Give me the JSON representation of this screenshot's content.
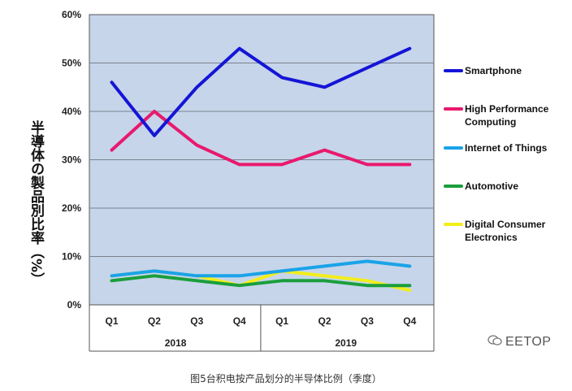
{
  "chart_data": {
    "type": "line",
    "title": "",
    "ylabel": "半導体の製品別比率（%）",
    "xlabel": "",
    "ylim": [
      0,
      60
    ],
    "yticks": [
      "0%",
      "10%",
      "20%",
      "30%",
      "40%",
      "50%",
      "60%"
    ],
    "categories": [
      "Q1",
      "Q2",
      "Q3",
      "Q4",
      "Q1",
      "Q2",
      "Q3",
      "Q4"
    ],
    "groups": [
      {
        "label": "2018",
        "span": [
          0,
          3
        ]
      },
      {
        "label": "2019",
        "span": [
          4,
          7
        ]
      }
    ],
    "grid": true,
    "legend_position": "right",
    "series": [
      {
        "name": "Smartphone",
        "color": "#1515d6",
        "values": [
          46,
          35,
          45,
          53,
          47,
          45,
          49,
          53
        ]
      },
      {
        "name": "High Performance Computing",
        "color": "#e8196e",
        "values": [
          32,
          40,
          33,
          29,
          29,
          32,
          29,
          29
        ]
      },
      {
        "name": "Internet of Things",
        "color": "#1aa3e8",
        "values": [
          6,
          7,
          6,
          6,
          7,
          8,
          9,
          8
        ]
      },
      {
        "name": "Automotive",
        "color": "#1a9e3c",
        "values": [
          5,
          6,
          5,
          4,
          5,
          5,
          4,
          4
        ]
      },
      {
        "name": "Digital Consumer Electronics",
        "color": "#f2ee1a",
        "values": [
          6,
          7,
          6,
          4,
          7,
          6,
          5,
          3
        ]
      }
    ],
    "legend_labels": [
      [
        "Smartphone"
      ],
      [
        "High Performance",
        "Computing"
      ],
      [
        "Internet of Things"
      ],
      [
        "Automotive"
      ],
      [
        "Digital Consumer",
        "Electronics"
      ]
    ],
    "plot_background": "#c6d5ea"
  },
  "caption": "图5台积电按产品划分的半导体比例（季度）",
  "watermark": "EETOP"
}
